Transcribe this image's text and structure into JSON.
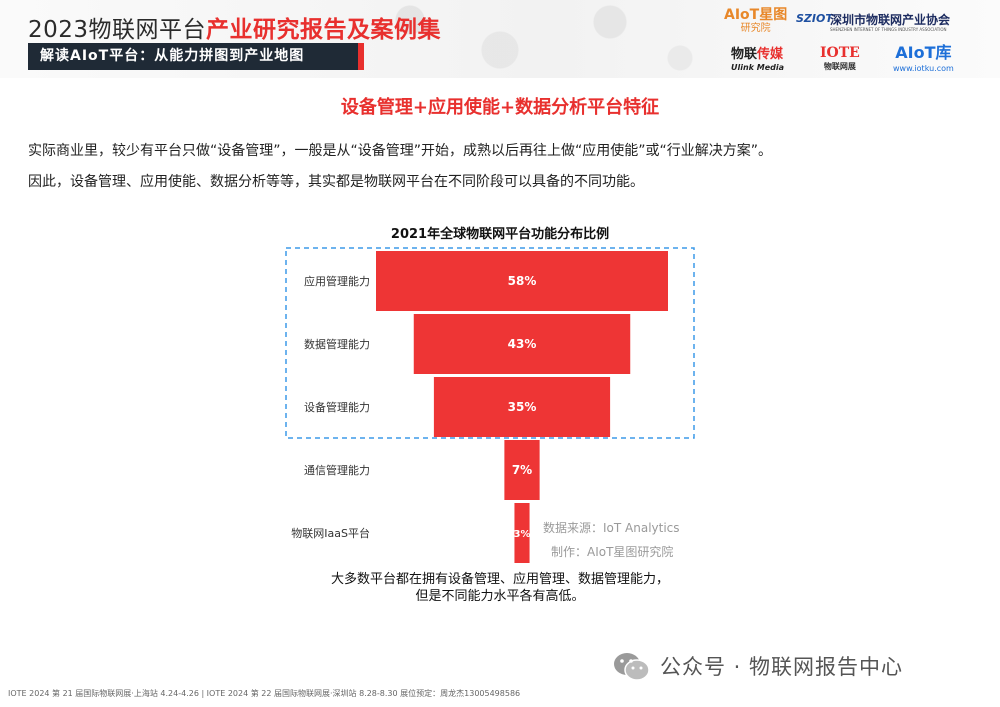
{
  "header": {
    "title_part1": "2023物联网平台",
    "title_part2": "产业研究报告及案例集",
    "subtitle": "解读AIoT平台：从能力拼图到产业地图",
    "logos": {
      "aiot_star": "AIoT星图",
      "aiot_star_sub": "研究院",
      "sziot": "SZIOT",
      "association": "深圳市物联网产业协会",
      "association_en": "SHENZHEN INTERNET OF THINGS INDUSTRY ASSOCIATION",
      "ulink_a": "物联",
      "ulink_b": "传媒",
      "ulink_en": "Ulink Media",
      "iote": "IOTE",
      "iote_sub": "物联网展",
      "aiotku": "AIoT库",
      "aiotku_sub": "www.iotku.com"
    }
  },
  "section_title": "设备管理+应用使能+数据分析平台特征",
  "body": {
    "line1": "实际商业里，较少有平台只做“设备管理”，一般是从“设备管理”开始，成熟以后再往上做“应用使能”或“行业解决方案”。",
    "line2": "因此，设备管理、应用使能、数据分析等等，其实都是物联网平台在不同阶段可以具备的不同功能。"
  },
  "chart_data": {
    "type": "bar",
    "orientation": "horizontal-funnel",
    "title": "2021年全球物联网平台功能分布比例",
    "categories": [
      "应用管理能力",
      "数据管理能力",
      "设备管理能力",
      "通信管理能力",
      "物联网IaaS平台"
    ],
    "values": [
      58,
      43,
      35,
      7,
      3
    ],
    "labels": [
      "58%",
      "43%",
      "35%",
      "7%",
      "3%"
    ],
    "unit": "%",
    "highlighted_categories": [
      "应用管理能力",
      "数据管理能力",
      "设备管理能力"
    ],
    "bar_color": "#ee3535",
    "highlight_border_color": "#3d9ae8"
  },
  "source": {
    "data_source": "数据来源：IoT Analytics",
    "made_by": "制作：AIoT星图研究院"
  },
  "conclusion": {
    "line1": "大多数平台都在拥有设备管理、应用管理、数据管理能力，",
    "line2": "但是不同能力水平各有高低。"
  },
  "footer": {
    "text": "IOTE 2024 第 21 届国际物联网展·上海站 4.24-4.26 | IOTE 2024 第 22 届国际物联网展·深圳站 8.28-8.30 展位预定：周龙杰13005498586"
  },
  "watermark": {
    "text": "公众号 · 物联网报告中心",
    "icon": "wechat-icon"
  }
}
